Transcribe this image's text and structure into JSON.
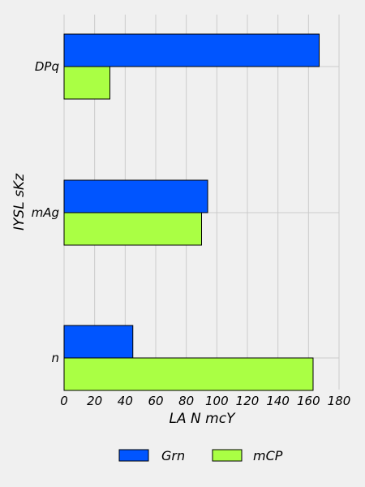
{
  "chart_data": {
    "type": "bar",
    "orientation": "horizontal",
    "categories": [
      "n",
      "mAg",
      "DPq"
    ],
    "series": [
      {
        "name": "Grn",
        "values": [
          45,
          94,
          167
        ],
        "color": "#0055ff"
      },
      {
        "name": "mCP",
        "values": [
          163,
          90,
          30
        ],
        "color": "#aaff44"
      }
    ],
    "xlabel": "LA N mcY",
    "ylabel": "IYSL sKz",
    "xlim": [
      0,
      180
    ],
    "xticks": [
      "0",
      "20",
      "40",
      "60",
      "80",
      "100",
      "120",
      "140",
      "160",
      "180"
    ],
    "grid": true,
    "legend_position": "bottom-center"
  }
}
